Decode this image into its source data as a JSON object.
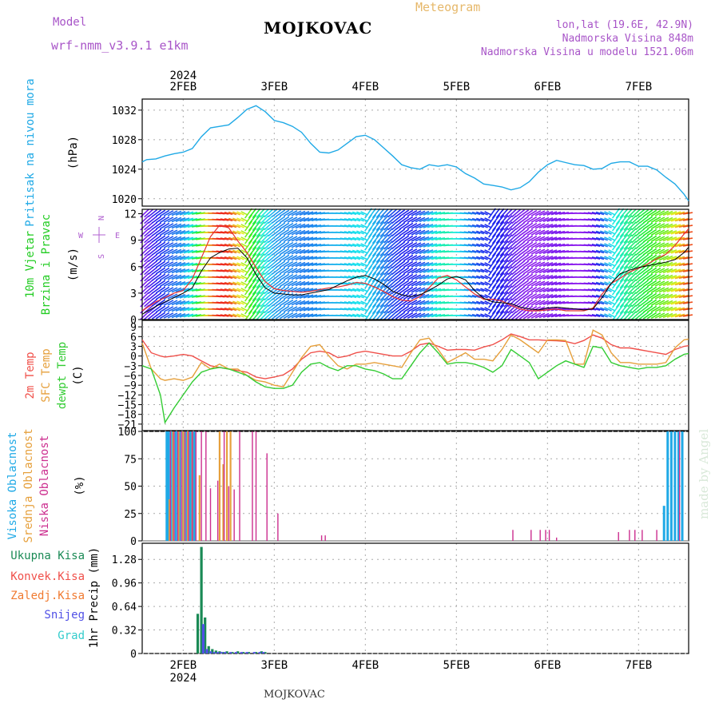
{
  "header": {
    "model_label": "Model",
    "model_name": "wrf-nmm_v3.9.1  e1km",
    "title": "MOJKOVAC",
    "meteogram_label": "Meteogram",
    "lonlat": "lon,lat (19.6E, 42.9N)",
    "elevation": "Nadmorska Visina 848m",
    "model_elevation": "Nadmorska Visina u modelu 1521.06m"
  },
  "footer": {
    "station": "MOJKOVAC"
  },
  "watermark": "made by Angel",
  "colors": {
    "pressure": "#1fa9e6",
    "temp2m": "#f0504a",
    "sfc": "#e6a03c",
    "dewpt": "#33cc33",
    "high_cloud": "#1fa9e6",
    "mid_cloud": "#e6a03c",
    "low_cloud": "#cc2e8f",
    "total_precip": "#1a8a55",
    "conv": "#f0504a",
    "frz": "#f07a30",
    "snow": "#5050e6",
    "grad": "#33cccc",
    "compass": "#b060d0",
    "watermark": "#d8e8d8"
  },
  "chart_data": [
    {
      "panel": "time-axis",
      "type": "table",
      "top_ticks": [
        "2FEB",
        "3FEB",
        "4FEB",
        "5FEB",
        "6FEB",
        "7FEB"
      ],
      "top_year": "2024",
      "bottom_ticks": [
        "2FEB",
        "3FEB",
        "4FEB",
        "5FEB",
        "6FEB",
        "7FEB"
      ],
      "bottom_year": "2024",
      "x_range_days": [
        1.55,
        7.55
      ]
    },
    {
      "panel": "pressure",
      "type": "line",
      "ylabel": "Pritisak na nivou mora",
      "unit": "(hPa)",
      "yticks": [
        1020,
        1024,
        1028,
        1032
      ],
      "ylim": [
        1019,
        1033.5
      ],
      "x": [
        1.55,
        1.6,
        1.7,
        1.8,
        1.9,
        2.0,
        2.1,
        2.2,
        2.3,
        2.4,
        2.5,
        2.6,
        2.7,
        2.8,
        2.9,
        3.0,
        3.1,
        3.2,
        3.3,
        3.4,
        3.5,
        3.6,
        3.7,
        3.8,
        3.9,
        4.0,
        4.1,
        4.2,
        4.3,
        4.4,
        4.5,
        4.6,
        4.7,
        4.8,
        4.9,
        5.0,
        5.1,
        5.2,
        5.3,
        5.4,
        5.5,
        5.6,
        5.7,
        5.8,
        5.9,
        6.0,
        6.1,
        6.2,
        6.3,
        6.4,
        6.5,
        6.6,
        6.7,
        6.8,
        6.9,
        7.0,
        7.1,
        7.2,
        7.3,
        7.4,
        7.5,
        7.55
      ],
      "series": [
        {
          "values": [
            1025.0,
            1025.3,
            1025.4,
            1025.8,
            1026.1,
            1026.3,
            1026.8,
            1028.4,
            1029.6,
            1029.8,
            1030.0,
            1031.0,
            1032.1,
            1032.6,
            1031.8,
            1030.6,
            1030.3,
            1029.8,
            1029.0,
            1027.5,
            1026.3,
            1026.2,
            1026.6,
            1027.5,
            1028.4,
            1028.6,
            1028.0,
            1026.9,
            1025.8,
            1024.6,
            1024.2,
            1024.0,
            1024.6,
            1024.4,
            1024.6,
            1024.3,
            1023.4,
            1022.8,
            1022.0,
            1021.8,
            1021.6,
            1021.2,
            1021.5,
            1022.3,
            1023.6,
            1024.6,
            1025.2,
            1024.9,
            1024.6,
            1024.5,
            1024.0,
            1024.1,
            1024.8,
            1025.0,
            1025.0,
            1024.4,
            1024.4,
            1023.9,
            1022.9,
            1022.0,
            1020.6,
            1019.7
          ]
        }
      ]
    },
    {
      "panel": "wind",
      "type": "line",
      "ylabel": "10m Vjetar",
      "ylabel2": "Brzina i Pravac",
      "unit": "(m/s)",
      "yticks": [
        0,
        3,
        6,
        9,
        12
      ],
      "ylim": [
        0,
        12.5
      ],
      "compass": {
        "n": "N",
        "s": "S",
        "e": "E",
        "w": "W"
      },
      "x": [
        1.55,
        1.7,
        1.9,
        2.0,
        2.1,
        2.2,
        2.3,
        2.4,
        2.5,
        2.6,
        2.7,
        2.8,
        2.9,
        3.0,
        3.1,
        3.2,
        3.3,
        3.4,
        3.5,
        3.6,
        3.7,
        3.8,
        3.9,
        4.0,
        4.1,
        4.2,
        4.3,
        4.4,
        4.5,
        4.6,
        4.7,
        4.8,
        4.9,
        5.0,
        5.1,
        5.2,
        5.3,
        5.4,
        5.5,
        5.6,
        5.7,
        5.8,
        5.9,
        6.0,
        6.1,
        6.2,
        6.3,
        6.4,
        6.5,
        6.6,
        6.7,
        6.8,
        6.9,
        7.0,
        7.1,
        7.2,
        7.3,
        7.4,
        7.5,
        7.55
      ],
      "series": [
        {
          "name": "mean",
          "values": [
            0.6,
            1.5,
            2.5,
            3.0,
            3.6,
            5.5,
            7.0,
            7.6,
            8.0,
            8.1,
            7.0,
            5.1,
            3.6,
            3.0,
            2.9,
            2.8,
            2.8,
            3.0,
            3.2,
            3.4,
            3.9,
            4.4,
            4.8,
            5.0,
            4.6,
            4.0,
            3.2,
            2.8,
            2.6,
            2.8,
            3.3,
            3.9,
            4.6,
            4.9,
            4.5,
            3.3,
            2.4,
            2.0,
            1.9,
            1.8,
            1.4,
            1.2,
            1.1,
            1.3,
            1.4,
            1.3,
            1.2,
            1.1,
            1.2,
            2.5,
            4.1,
            5.2,
            5.6,
            5.9,
            6.1,
            6.3,
            6.5,
            6.8,
            7.6,
            8.2
          ]
        },
        {
          "name": "gust",
          "values": [
            1.0,
            2.0,
            3.0,
            3.3,
            4.6,
            7.0,
            9.4,
            10.7,
            10.4,
            8.9,
            7.6,
            5.9,
            4.3,
            3.5,
            3.3,
            3.2,
            3.1,
            3.2,
            3.4,
            3.6,
            3.7,
            3.9,
            4.2,
            4.1,
            3.7,
            3.2,
            2.6,
            2.2,
            2.1,
            2.6,
            3.6,
            4.7,
            5.0,
            4.5,
            3.7,
            2.9,
            2.3,
            2.3,
            2.1,
            1.6,
            1.2,
            1.0,
            1.0,
            1.1,
            1.2,
            1.0,
            1.0,
            1.0,
            1.3,
            2.9,
            4.1,
            4.7,
            5.4,
            5.8,
            6.3,
            6.9,
            7.4,
            8.4,
            9.7,
            10.3
          ]
        }
      ]
    },
    {
      "panel": "temperature",
      "type": "line",
      "ylabels": [
        "2m Temp",
        "SFC Temp",
        "dewpt Temp"
      ],
      "unit": "(C)",
      "yticks": [
        -21,
        -18,
        -15,
        -12,
        -9,
        -6,
        -3,
        0,
        3,
        6,
        9
      ],
      "ylim": [
        -23,
        11
      ],
      "x": [
        1.55,
        1.65,
        1.75,
        1.8,
        1.9,
        2.0,
        2.1,
        2.2,
        2.3,
        2.4,
        2.5,
        2.6,
        2.7,
        2.8,
        2.9,
        3.0,
        3.1,
        3.2,
        3.3,
        3.4,
        3.5,
        3.6,
        3.7,
        3.8,
        3.9,
        4.0,
        4.1,
        4.2,
        4.3,
        4.4,
        4.5,
        4.6,
        4.7,
        4.8,
        4.9,
        5.0,
        5.1,
        5.2,
        5.3,
        5.4,
        5.5,
        5.6,
        5.7,
        5.8,
        5.9,
        6.0,
        6.1,
        6.2,
        6.3,
        6.4,
        6.5,
        6.6,
        6.7,
        6.8,
        6.9,
        7.0,
        7.1,
        7.2,
        7.3,
        7.4,
        7.5,
        7.55
      ],
      "series": [
        {
          "name": "2m Temp",
          "values": [
            5,
            1,
            0,
            -0.3,
            0,
            0.5,
            0,
            -1.5,
            -3,
            -3.5,
            -4,
            -4.5,
            -5,
            -6.5,
            -7,
            -6.5,
            -5.8,
            -4,
            -1,
            1,
            1.5,
            1,
            -0.5,
            0,
            1,
            1.5,
            1,
            0.5,
            0,
            0,
            1.5,
            3.5,
            4,
            3,
            1.8,
            2,
            2,
            1.8,
            2.8,
            3.5,
            5,
            6.8,
            6,
            5,
            5,
            4.8,
            4.7,
            4.5,
            3.8,
            4.8,
            6.5,
            5.5,
            3.5,
            2.5,
            2.5,
            2,
            1.5,
            1,
            0.5,
            2,
            3,
            3.2
          ]
        },
        {
          "name": "SFC Temp",
          "values": [
            4,
            -4,
            -7,
            -7.5,
            -7,
            -7.5,
            -6.5,
            -2,
            -4,
            -2.5,
            -4,
            -4,
            -6,
            -7.5,
            -8,
            -9,
            -9.5,
            -5,
            -0.5,
            3,
            3.5,
            0,
            -3,
            -4,
            -2.5,
            -2.5,
            -2,
            -2.5,
            -3,
            -3.5,
            1,
            5,
            5.5,
            2,
            -2,
            -0.5,
            1,
            -1,
            -1,
            -1.5,
            2,
            6.5,
            5,
            3,
            1,
            5,
            5,
            4.8,
            -2.5,
            -2.5,
            8,
            6.5,
            1,
            -2,
            -2,
            -2.5,
            -2.5,
            -2.5,
            -2,
            2.5,
            5,
            5.2
          ]
        },
        {
          "name": "dewpt Temp",
          "values": [
            -3,
            -4,
            -12,
            -20.5,
            -16,
            -12,
            -8,
            -5,
            -4,
            -3.5,
            -4,
            -5,
            -6,
            -8,
            -9.5,
            -10,
            -10,
            -9,
            -5,
            -2.5,
            -2,
            -3.5,
            -4.5,
            -3,
            -3,
            -4,
            -4.5,
            -5.5,
            -7,
            -7,
            -3,
            1,
            4,
            1,
            -2.5,
            -2,
            -2,
            -2.5,
            -3.5,
            -5,
            -3,
            2,
            0,
            -2,
            -7,
            -5,
            -3,
            -1.5,
            -2.5,
            -3.5,
            3,
            2.5,
            -2,
            -3,
            -3.5,
            -4,
            -3.5,
            -3.5,
            -3,
            -1,
            0.5,
            0.8
          ]
        }
      ]
    },
    {
      "panel": "clouds",
      "type": "bar",
      "ylabels": [
        "Visoka Oblacnost",
        "Srednja Oblacnost",
        "Niska Oblacnost"
      ],
      "unit": "(%)",
      "yticks": [
        0,
        25,
        50,
        75,
        100
      ],
      "ylim": [
        0,
        100
      ],
      "series": [
        {
          "name": "Visoka Oblacnost",
          "x": [
            1.82,
            1.84,
            1.88,
            1.92,
            1.96,
            2.0,
            2.04,
            2.08,
            2.12,
            7.28,
            7.32,
            7.36,
            7.4,
            7.44,
            7.48
          ],
          "values": [
            100,
            100,
            100,
            100,
            100,
            100,
            100,
            100,
            100,
            32,
            100,
            100,
            100,
            100,
            100
          ]
        },
        {
          "name": "Srednja Oblacnost",
          "x": [
            1.85,
            1.89,
            1.95,
            2.0,
            2.05,
            2.1,
            2.18,
            2.4,
            2.44,
            2.48,
            2.52
          ],
          "values": [
            38,
            100,
            100,
            100,
            100,
            100,
            60,
            100,
            70,
            100,
            100
          ]
        },
        {
          "name": "Niska Oblacnost",
          "x": [
            1.86,
            1.9,
            1.94,
            1.98,
            2.02,
            2.06,
            2.1,
            2.14,
            2.2,
            2.25,
            2.3,
            2.38,
            2.45,
            2.5,
            2.56,
            2.62,
            2.76,
            2.8,
            2.92,
            3.04,
            3.52,
            3.56,
            5.62,
            5.82,
            5.92,
            5.98,
            6.02,
            6.1,
            6.78,
            6.9,
            6.96,
            7.04,
            7.2,
            7.45
          ],
          "values": [
            100,
            100,
            100,
            100,
            100,
            100,
            100,
            100,
            100,
            100,
            48,
            55,
            100,
            50,
            47,
            100,
            100,
            100,
            80,
            25,
            5,
            5,
            10,
            10,
            10,
            10,
            10,
            3,
            8,
            10,
            10,
            10,
            10,
            100
          ]
        }
      ]
    },
    {
      "panel": "precipitation",
      "type": "bar",
      "ylabel": "1hr Precip",
      "unit": "(mm)",
      "ylabels": [
        "Ukupna Kisa",
        "Konvek.Kisa",
        "Zaledj.Kisa",
        "Snijeg",
        "Grad"
      ],
      "yticks": [
        0,
        0.32,
        0.64,
        0.96,
        1.28
      ],
      "ylim": [
        0,
        1.5
      ],
      "series": [
        {
          "name": "Ukupna Kisa",
          "x": [
            2.16,
            2.2,
            2.24,
            2.28,
            2.32,
            2.36,
            2.4,
            2.44,
            2.48,
            2.54,
            2.6,
            2.66,
            2.72,
            2.8,
            2.86,
            2.9
          ],
          "values": [
            0.54,
            1.45,
            0.49,
            0.1,
            0.06,
            0.04,
            0.03,
            0.02,
            0.03,
            0.02,
            0.03,
            0.02,
            0.02,
            0.02,
            0.03,
            0.02
          ]
        },
        {
          "name": "Snijeg",
          "x": [
            2.22,
            2.26,
            2.3,
            2.34,
            2.38,
            2.42,
            2.46,
            2.52,
            2.58,
            2.64,
            2.7,
            2.78,
            2.84,
            2.88
          ],
          "values": [
            0.4,
            0.06,
            0.03,
            0.02,
            0.02,
            0.02,
            0.02,
            0.02,
            0.02,
            0.02,
            0.02,
            0.02,
            0.02,
            0.02
          ]
        }
      ]
    }
  ]
}
